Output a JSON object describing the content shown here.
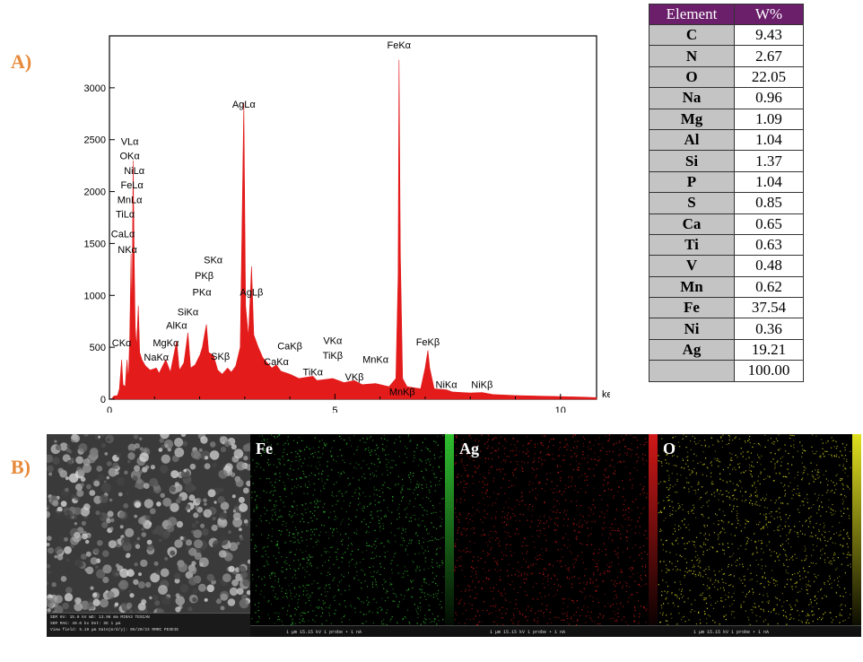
{
  "panel_labels": {
    "a": "A)",
    "b": "B)"
  },
  "chart_data": {
    "type": "line",
    "title": "",
    "xlabel": "keV",
    "ylabel": "",
    "xlim": [
      0,
      10.8
    ],
    "ylim": [
      0,
      3500
    ],
    "x_ticks": [
      0,
      5,
      10
    ],
    "y_ticks": [
      0,
      500,
      1000,
      1500,
      2000,
      2500,
      3000
    ],
    "fill_color": "#e31b1b",
    "series": [
      {
        "values": [
          [
            0.0,
            0
          ],
          [
            0.05,
            5
          ],
          [
            0.1,
            30
          ],
          [
            0.18,
            35
          ],
          [
            0.22,
            100
          ],
          [
            0.27,
            380
          ],
          [
            0.3,
            140
          ],
          [
            0.35,
            120
          ],
          [
            0.39,
            380
          ],
          [
            0.42,
            180
          ],
          [
            0.45,
            600
          ],
          [
            0.48,
            1400
          ],
          [
            0.5,
            700
          ],
          [
            0.525,
            2300
          ],
          [
            0.55,
            1300
          ],
          [
            0.57,
            700
          ],
          [
            0.6,
            500
          ],
          [
            0.64,
            900
          ],
          [
            0.67,
            450
          ],
          [
            0.72,
            380
          ],
          [
            0.8,
            320
          ],
          [
            0.9,
            280
          ],
          [
            1.04,
            300
          ],
          [
            1.1,
            250
          ],
          [
            1.25,
            380
          ],
          [
            1.35,
            260
          ],
          [
            1.49,
            560
          ],
          [
            1.55,
            280
          ],
          [
            1.65,
            350
          ],
          [
            1.74,
            640
          ],
          [
            1.8,
            300
          ],
          [
            1.9,
            330
          ],
          [
            2.01,
            430
          ],
          [
            2.06,
            500
          ],
          [
            2.1,
            600
          ],
          [
            2.15,
            720
          ],
          [
            2.2,
            450
          ],
          [
            2.31,
            420
          ],
          [
            2.4,
            280
          ],
          [
            2.5,
            240
          ],
          [
            2.62,
            300
          ],
          [
            2.7,
            260
          ],
          [
            2.8,
            320
          ],
          [
            2.9,
            500
          ],
          [
            2.98,
            2850
          ],
          [
            3.02,
            900
          ],
          [
            3.08,
            600
          ],
          [
            3.15,
            1280
          ],
          [
            3.2,
            620
          ],
          [
            3.3,
            500
          ],
          [
            3.4,
            400
          ],
          [
            3.6,
            300
          ],
          [
            3.7,
            330
          ],
          [
            3.8,
            270
          ],
          [
            4.0,
            240
          ],
          [
            4.2,
            200
          ],
          [
            4.51,
            220
          ],
          [
            4.6,
            180
          ],
          [
            4.95,
            200
          ],
          [
            5.2,
            160
          ],
          [
            5.43,
            180
          ],
          [
            5.6,
            140
          ],
          [
            5.9,
            150
          ],
          [
            6.2,
            120
          ],
          [
            6.35,
            200
          ],
          [
            6.4,
            1200
          ],
          [
            6.42,
            3270
          ],
          [
            6.45,
            1400
          ],
          [
            6.5,
            200
          ],
          [
            6.6,
            120
          ],
          [
            6.9,
            100
          ],
          [
            7.0,
            300
          ],
          [
            7.06,
            470
          ],
          [
            7.1,
            300
          ],
          [
            7.2,
            100
          ],
          [
            7.47,
            90
          ],
          [
            7.6,
            70
          ],
          [
            8.0,
            60
          ],
          [
            8.26,
            65
          ],
          [
            8.5,
            45
          ],
          [
            9.0,
            35
          ],
          [
            9.5,
            30
          ],
          [
            10.0,
            25
          ],
          [
            10.5,
            20
          ],
          [
            10.8,
            15
          ]
        ]
      }
    ],
    "annotations": [
      {
        "text": "FeKα",
        "x": 6.42,
        "y": 3380
      },
      {
        "text": "AgLα",
        "x": 2.98,
        "y": 2810
      },
      {
        "text": "VLα",
        "x": 0.45,
        "y": 2450
      },
      {
        "text": "OKα",
        "x": 0.45,
        "y": 2310
      },
      {
        "text": "NiLα",
        "x": 0.55,
        "y": 2170
      },
      {
        "text": "FeLα",
        "x": 0.5,
        "y": 2030
      },
      {
        "text": "MnLα",
        "x": 0.45,
        "y": 1890
      },
      {
        "text": "TiLα",
        "x": 0.35,
        "y": 1750
      },
      {
        "text": "CaLα",
        "x": 0.3,
        "y": 1560
      },
      {
        "text": "NKα",
        "x": 0.4,
        "y": 1410
      },
      {
        "text": "SKα",
        "x": 2.3,
        "y": 1310
      },
      {
        "text": "PKβ",
        "x": 2.1,
        "y": 1160
      },
      {
        "text": "PKα",
        "x": 2.05,
        "y": 1000
      },
      {
        "text": "AgLβ",
        "x": 3.15,
        "y": 1000
      },
      {
        "text": "SiKα",
        "x": 1.74,
        "y": 810
      },
      {
        "text": "AlKα",
        "x": 1.49,
        "y": 680
      },
      {
        "text": "MgKα",
        "x": 1.25,
        "y": 510
      },
      {
        "text": "NaKα",
        "x": 1.04,
        "y": 370
      },
      {
        "text": "CKα",
        "x": 0.27,
        "y": 510
      },
      {
        "text": "SKβ",
        "x": 2.46,
        "y": 380
      },
      {
        "text": "CaKβ",
        "x": 4.0,
        "y": 480
      },
      {
        "text": "CaKα",
        "x": 3.7,
        "y": 330
      },
      {
        "text": "VKα",
        "x": 4.95,
        "y": 530
      },
      {
        "text": "TiKβ",
        "x": 4.95,
        "y": 390
      },
      {
        "text": "TiKα",
        "x": 4.51,
        "y": 230
      },
      {
        "text": "VKβ",
        "x": 5.43,
        "y": 180
      },
      {
        "text": "MnKα",
        "x": 5.9,
        "y": 350
      },
      {
        "text": "MnKβ",
        "x": 6.49,
        "y": 40
      },
      {
        "text": "FeKβ",
        "x": 7.06,
        "y": 520
      },
      {
        "text": "NiKα",
        "x": 7.47,
        "y": 110
      },
      {
        "text": "NiKβ",
        "x": 8.26,
        "y": 110
      }
    ]
  },
  "table": {
    "headers": [
      "Element",
      "W%"
    ],
    "rows": [
      [
        "C",
        "9.43"
      ],
      [
        "N",
        "2.67"
      ],
      [
        "O",
        "22.05"
      ],
      [
        "Na",
        "0.96"
      ],
      [
        "Mg",
        "1.09"
      ],
      [
        "Al",
        "1.04"
      ],
      [
        "Si",
        "1.37"
      ],
      [
        "P",
        "1.04"
      ],
      [
        "S",
        "0.85"
      ],
      [
        "Ca",
        "0.65"
      ],
      [
        "Ti",
        "0.63"
      ],
      [
        "V",
        "0.48"
      ],
      [
        "Mn",
        "0.62"
      ],
      [
        "Fe",
        "37.54"
      ],
      [
        "Ni",
        "0.36"
      ],
      [
        "Ag",
        "19.21"
      ],
      [
        "",
        "100.00"
      ]
    ]
  },
  "maps": [
    {
      "label": "",
      "kind": "sem",
      "color": "#9a9a9a"
    },
    {
      "label": "Fe",
      "kind": "element",
      "color": "#2fbf2f"
    },
    {
      "label": "Ag",
      "kind": "element",
      "color": "#d01818"
    },
    {
      "label": "O",
      "kind": "element",
      "color": "#e0e020"
    }
  ],
  "map_footer": "1 μm   15.15 kV  1 probe • 1 nA",
  "sem_info": {
    "line1": "SEM HV: 15.0 kV     WD: 13.96 mm       MIRA3 TESCAN",
    "line2": "SEM MAG: 40.0 kx    Det: SE       1 μm",
    "line3": "View field: 5.19 μm   Date(m/d/y): 05/20/23    RMRC PESEIE"
  }
}
